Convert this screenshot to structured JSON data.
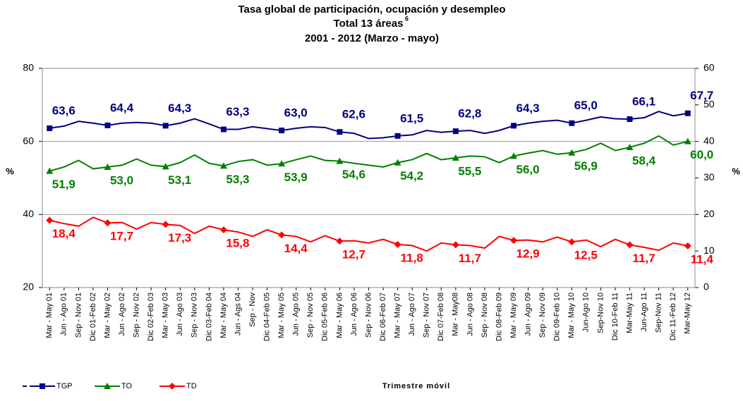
{
  "chart_data": {
    "type": "line",
    "title": "Tasa global de participación, ocupación y desempleo",
    "subtitle": "Total 13 áreas",
    "subtitle_footnote": "6",
    "period": "2001 - 2012 (Marzo - mayo)",
    "y_label": "%",
    "y2_label": "%",
    "x_label": "Trimestre móvil",
    "categories": [
      "Mar - May 01",
      "Jun - Ago 01",
      "Sep - Nov 01",
      "Dic 01-Feb 02",
      "Mar - May 02",
      "Jun - Ago 02",
      "Sep - Nov 02",
      "Dic 02-Feb 03",
      "Mar - May 03",
      "Jun - Ago 03",
      "Sep - Nov 03",
      "Dic 03-Feb 04",
      "Mar - May 04",
      "Jun - Ags 04",
      "Sep - Nov",
      "Dic 04-Feb 05",
      "Mar - May 05",
      "Jun - Ago 05",
      "Sep - Nov 05",
      "Dic 05-Feb 06",
      "Mar - May 06",
      "Jun - Ago 06",
      "Sep - Nov 06",
      "Dic 06-Feb 07",
      "Mar - May 07",
      "Jun - Ago 07",
      "Sep - Nov 07",
      "Dic 07-Feb 08",
      "Mar - May08",
      "Jun - Ago 08",
      "Sep - Nov 08",
      "Dic 08-Feb 09",
      "Mar - May 09",
      "Jun - Ago 09",
      "Sep - Nov 09",
      "Dic 09-Feb 10",
      "Mar - May 10",
      "Jun-Ago 10",
      "Sep-Nov 10",
      "Dic 10-Feb 11",
      "Mar-May 11",
      "Jun-Ago 11",
      "Sep-Nov 11",
      "Dic 11-Feb 12",
      "Mar-May 12"
    ],
    "ylim": [
      20,
      80
    ],
    "yticks": [
      20,
      40,
      60,
      80
    ],
    "y2lim": [
      0,
      60
    ],
    "y2ticks": [
      0,
      10,
      20,
      30,
      40,
      50,
      60
    ],
    "grid": true,
    "series": [
      {
        "name": "TGP",
        "color": "#000080",
        "marker": "square",
        "label_position": "above",
        "values": [
          63.6,
          64.2,
          65.5,
          65.0,
          64.4,
          65.0,
          65.2,
          65.0,
          64.3,
          65.0,
          66.2,
          64.8,
          63.3,
          63.3,
          64.0,
          63.5,
          63.0,
          63.6,
          64.0,
          63.8,
          62.6,
          62.2,
          60.8,
          61.0,
          61.5,
          61.8,
          63.0,
          62.5,
          62.8,
          63.0,
          62.2,
          63.0,
          64.3,
          65.0,
          65.5,
          65.8,
          65.0,
          65.8,
          66.7,
          66.2,
          66.1,
          66.5,
          68.2,
          67.0,
          67.7
        ],
        "value_labels": [
          "63,6",
          null,
          null,
          null,
          "64,4",
          null,
          null,
          null,
          "64,3",
          null,
          null,
          null,
          "63,3",
          null,
          null,
          null,
          "63,0",
          null,
          null,
          null,
          "62,6",
          null,
          null,
          null,
          "61,5",
          null,
          null,
          null,
          "62,8",
          null,
          null,
          null,
          "64,3",
          null,
          null,
          null,
          "65,0",
          null,
          null,
          null,
          "66,1",
          null,
          null,
          null,
          "67,7"
        ]
      },
      {
        "name": "TO",
        "color": "#008000",
        "marker": "triangle",
        "label_position": "below",
        "values": [
          51.9,
          53.0,
          54.8,
          52.5,
          53.0,
          53.5,
          55.2,
          53.5,
          53.1,
          54.2,
          56.3,
          54.0,
          53.3,
          54.5,
          55.0,
          53.5,
          53.9,
          55.0,
          56.0,
          54.8,
          54.6,
          54.0,
          53.5,
          53.0,
          54.2,
          55.0,
          56.7,
          55.0,
          55.5,
          56.0,
          55.8,
          54.2,
          56.0,
          56.8,
          57.5,
          56.5,
          56.9,
          57.8,
          59.5,
          57.5,
          58.4,
          59.5,
          61.5,
          59.0,
          60.0
        ],
        "value_labels": [
          "51,9",
          null,
          null,
          null,
          "53,0",
          null,
          null,
          null,
          "53,1",
          null,
          null,
          null,
          "53,3",
          null,
          null,
          null,
          "53,9",
          null,
          null,
          null,
          "54,6",
          null,
          null,
          null,
          "54,2",
          null,
          null,
          null,
          "55,5",
          null,
          null,
          null,
          "56,0",
          null,
          null,
          null,
          "56,9",
          null,
          null,
          null,
          "58,4",
          null,
          null,
          null,
          "60,0"
        ]
      },
      {
        "name": "TD",
        "color": "#ff0000",
        "marker": "diamond",
        "label_position": "below",
        "axis": "y2",
        "values": [
          18.4,
          17.5,
          16.8,
          19.2,
          17.7,
          17.8,
          16.0,
          17.8,
          17.3,
          17.0,
          14.8,
          16.8,
          15.8,
          15.2,
          14.0,
          15.8,
          14.4,
          14.0,
          12.5,
          14.2,
          12.7,
          12.8,
          12.2,
          13.2,
          11.8,
          11.5,
          10.0,
          12.2,
          11.7,
          11.5,
          10.8,
          14.0,
          12.9,
          13.0,
          12.5,
          13.8,
          12.5,
          13.0,
          11.2,
          13.2,
          11.7,
          11.0,
          10.2,
          12.2,
          11.4
        ],
        "value_labels": [
          "18,4",
          null,
          null,
          null,
          "17,7",
          null,
          null,
          null,
          "17,3",
          null,
          null,
          null,
          "15,8",
          null,
          null,
          null,
          "14,4",
          null,
          null,
          null,
          "12,7",
          null,
          null,
          null,
          "11,8",
          null,
          null,
          null,
          "11,7",
          null,
          null,
          null,
          "12,9",
          null,
          null,
          null,
          "12,5",
          null,
          null,
          null,
          "11,7",
          null,
          null,
          null,
          "11,4"
        ]
      }
    ]
  }
}
